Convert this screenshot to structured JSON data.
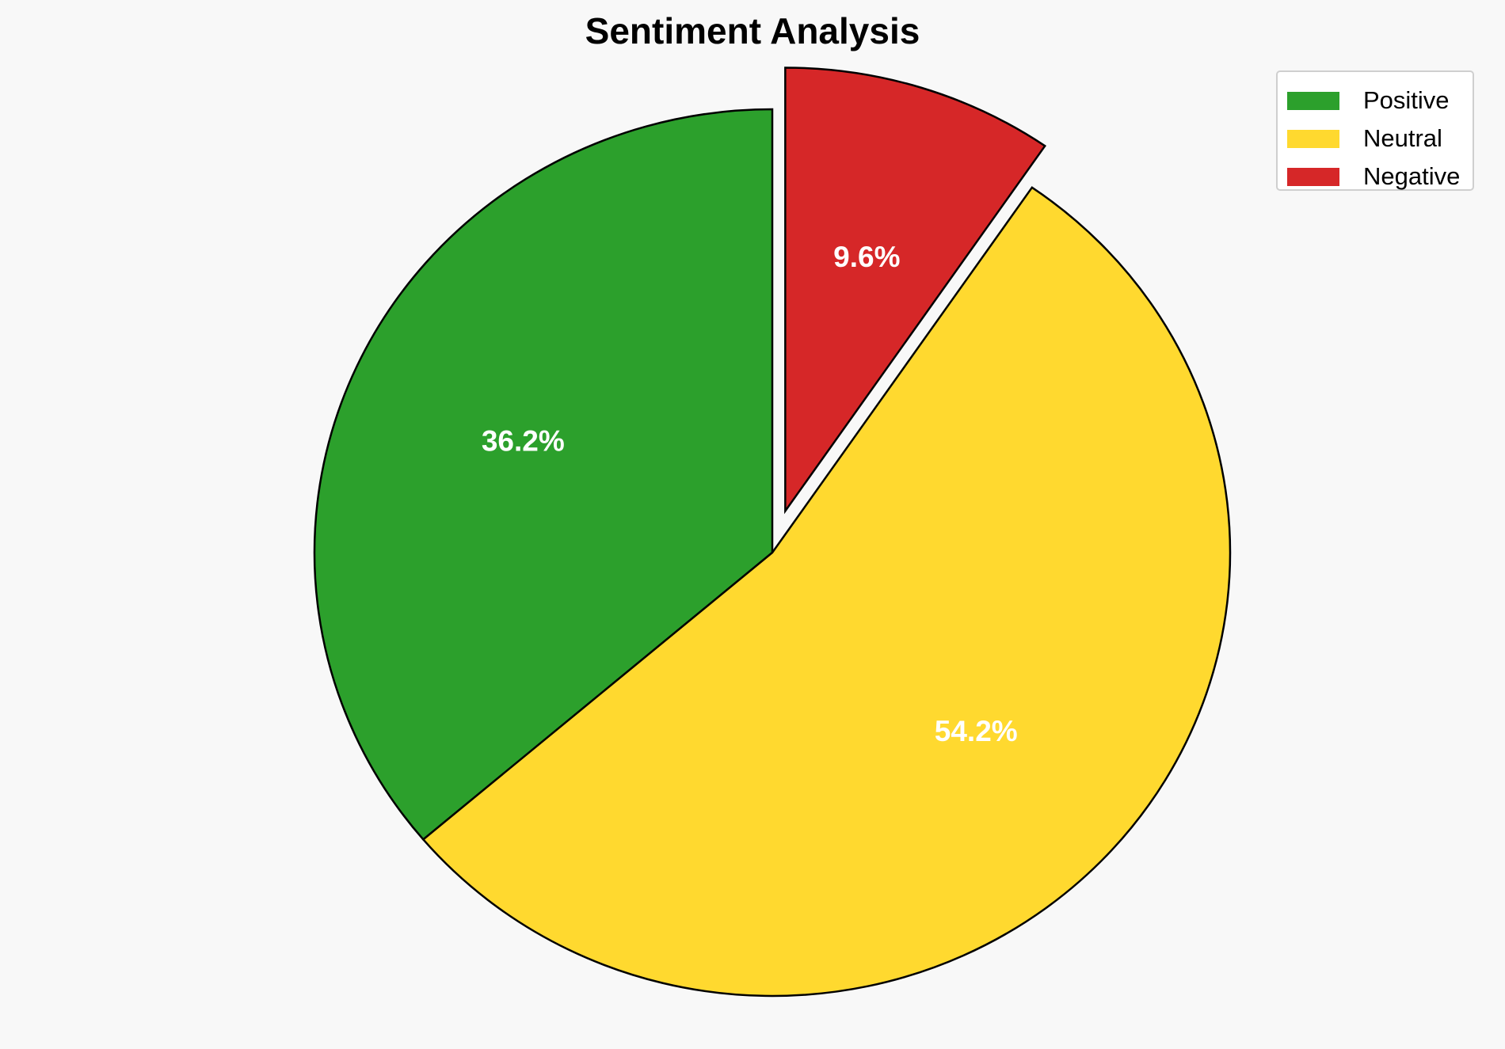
{
  "chart_data": {
    "type": "pie",
    "title": "Sentiment Analysis",
    "start_angle_deg": 90,
    "direction": "counterclockwise",
    "slices": [
      {
        "name": "Positive",
        "value": 36.2,
        "label": "36.2%",
        "color": "#2ca02c",
        "exploded": false
      },
      {
        "name": "Neutral",
        "value": 54.2,
        "label": "54.2%",
        "color": "#ffd92f",
        "exploded": false
      },
      {
        "name": "Negative",
        "value": 9.6,
        "label": "9.6%",
        "color": "#d62728",
        "exploded": true
      }
    ],
    "edge_color": "#000000",
    "legend": {
      "position": "top-right",
      "entries": [
        "Positive",
        "Neutral",
        "Negative"
      ]
    }
  }
}
